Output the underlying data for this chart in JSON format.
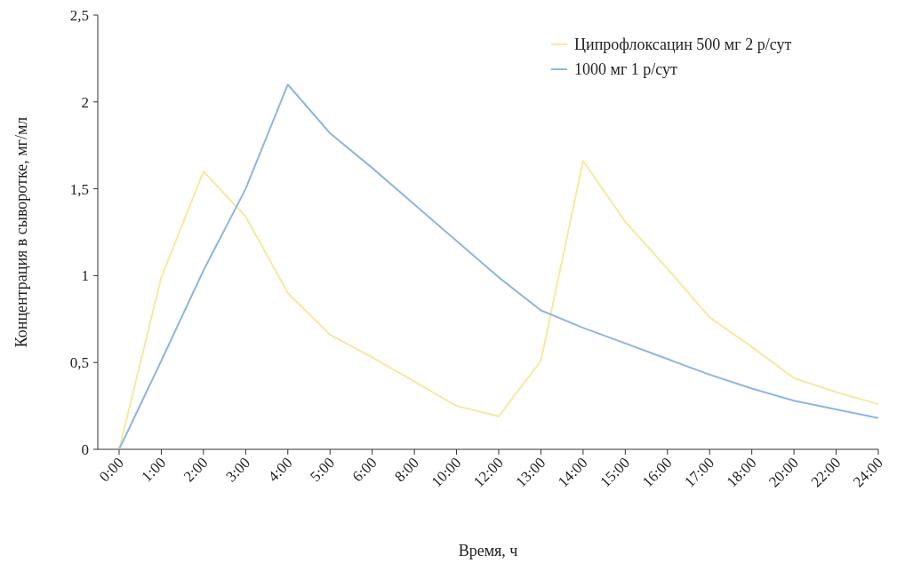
{
  "chart_data": {
    "type": "line",
    "xlabel": "Время, ч",
    "ylabel": "Концентрация в сыворотке, мг/мл",
    "categories": [
      "0:00",
      "1:00",
      "2:00",
      "3:00",
      "4:00",
      "5:00",
      "6:00",
      "8:00",
      "10:00",
      "12:00",
      "13:00",
      "14:00",
      "15:00",
      "16:00",
      "17:00",
      "18:00",
      "20:00",
      "22:00",
      "24:00"
    ],
    "series": [
      {
        "name": "Ципрофлоксацин 500 мг 2 р/сут",
        "color": "#f7e8a0",
        "values": [
          0,
          0.99,
          1.6,
          1.34,
          0.9,
          0.66,
          0.53,
          0.39,
          0.25,
          0.19,
          0.51,
          1.66,
          1.31,
          1.04,
          0.76,
          0.59,
          0.41,
          0.33,
          0.26
        ]
      },
      {
        "name": "1000 мг 1 р/сут",
        "color": "#8fb6e0",
        "values": [
          0,
          0.51,
          1.03,
          1.5,
          2.1,
          1.82,
          1.62,
          1.41,
          1.2,
          0.99,
          0.8,
          0.7,
          0.61,
          0.52,
          0.43,
          0.35,
          0.28,
          0.23,
          0.18
        ]
      }
    ],
    "ylim": [
      0,
      2.5
    ],
    "yticks": [
      {
        "value": 0,
        "label": "0"
      },
      {
        "value": 0.5,
        "label": "0,5"
      },
      {
        "value": 1,
        "label": "1"
      },
      {
        "value": 1.5,
        "label": "1,5"
      },
      {
        "value": 2,
        "label": "2"
      },
      {
        "value": 2.5,
        "label": "2,5"
      }
    ],
    "legend": "top right",
    "grid": false,
    "marker": "none",
    "line_style": "solid"
  }
}
